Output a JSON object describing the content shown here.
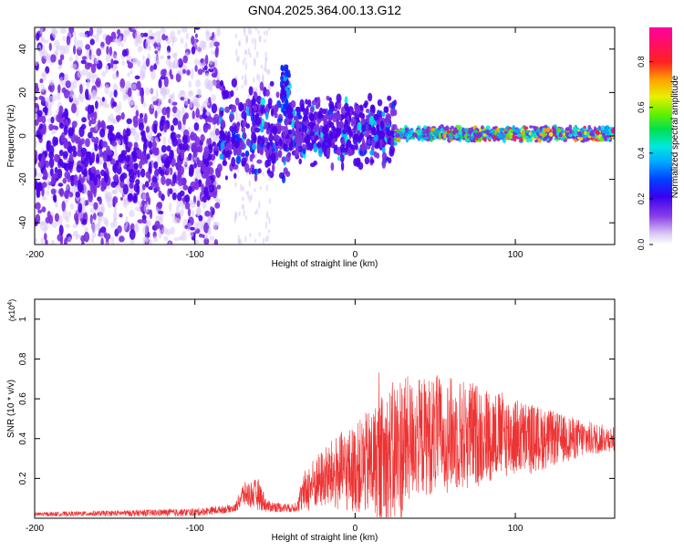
{
  "page": {
    "title": "GN04.2025.364.00.13.G12"
  },
  "chart_data": [
    {
      "type": "heatmap",
      "title": "GN04.2025.364.00.13.G12",
      "xlabel": "Height of straight line (km)",
      "ylabel": "Frequency (Hz)",
      "xlim": [
        -200,
        162
      ],
      "ylim": [
        -50,
        50
      ],
      "x_ticks": [
        -200,
        -100,
        0,
        100
      ],
      "y_ticks": [
        -40,
        -20,
        0,
        20,
        40
      ],
      "colorbar": {
        "label": "Normalized spectral amplitude",
        "range": [
          0,
          0.95
        ],
        "ticks": [
          0,
          0.2,
          0.4,
          0.6,
          0.8
        ],
        "colormap": [
          "#ffffff",
          "#d9c8f5",
          "#7a2de0",
          "#4a00e8",
          "#0033ff",
          "#00a8ff",
          "#00e8e0",
          "#00e060",
          "#60f000",
          "#e8f000",
          "#ffa000",
          "#ff2020",
          "#ff1060",
          "#ff00a0"
        ]
      },
      "description_regions": [
        {
          "x_range": [
            -200,
            -85
          ],
          "dominant_freq_spread": [
            -45,
            45
          ],
          "amplitude": "low"
        },
        {
          "x_range": [
            -85,
            25
          ],
          "dominant_freq_spread": [
            -20,
            25
          ],
          "amplitude": "low-mid"
        },
        {
          "x_range": [
            25,
            162
          ],
          "dominant_freq_spread": [
            -3,
            3
          ],
          "amplitude": "mid-high"
        }
      ]
    },
    {
      "type": "line",
      "xlabel": "Height of straight line (km)",
      "ylabel": "SNR (10 * v/v)",
      "y_multiplier": "(x10^4)",
      "xlim": [
        -200,
        162
      ],
      "ylim": [
        0,
        1.1
      ],
      "x_ticks": [
        -200,
        -100,
        0,
        100
      ],
      "y_ticks": [
        0.2,
        0.4,
        0.6,
        0.8,
        1.0
      ],
      "series": [
        {
          "color": "#ee3333",
          "envelope_x": [
            -200,
            -150,
            -100,
            -75,
            -70,
            -60,
            -55,
            -38,
            -30,
            -20,
            -10,
            0,
            10,
            20,
            28,
            35,
            50,
            70,
            90,
            110,
            130,
            150,
            162
          ],
          "envelope_mid": [
            0.02,
            0.025,
            0.03,
            0.05,
            0.12,
            0.12,
            0.06,
            0.05,
            0.15,
            0.2,
            0.23,
            0.25,
            0.28,
            0.3,
            0.34,
            0.4,
            0.42,
            0.42,
            0.42,
            0.4,
            0.4,
            0.4,
            0.4
          ],
          "envelope_amp": [
            0.01,
            0.015,
            0.02,
            0.02,
            0.06,
            0.08,
            0.03,
            0.02,
            0.12,
            0.15,
            0.2,
            0.22,
            0.28,
            0.35,
            0.4,
            0.3,
            0.3,
            0.28,
            0.22,
            0.18,
            0.12,
            0.08,
            0.06
          ]
        }
      ]
    }
  ]
}
